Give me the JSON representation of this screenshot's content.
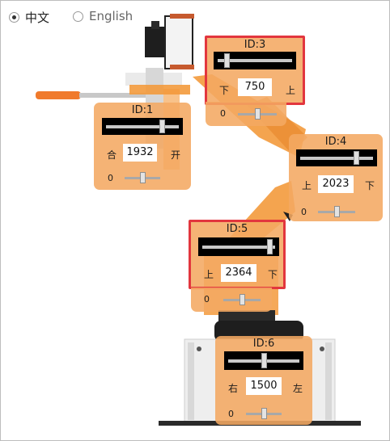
{
  "language": {
    "options": [
      {
        "label": "中文",
        "selected": true
      },
      {
        "label": "English",
        "selected": false
      }
    ]
  },
  "panels": [
    {
      "id_label": "ID:3",
      "value": "750",
      "left_label": "下",
      "right_label": "上",
      "slider_fraction": 0.16,
      "offset_label": "0",
      "offset_fraction": 0.5,
      "highlighted": true
    },
    {
      "id_label": "ID:1",
      "value": "1932",
      "left_label": "合",
      "right_label": "开",
      "slider_fraction": 0.74,
      "offset_label": "0",
      "offset_fraction": 0.5,
      "highlighted": false
    },
    {
      "id_label": "ID:4",
      "value": "2023",
      "left_label": "上",
      "right_label": "下",
      "slider_fraction": 0.74,
      "offset_label": "0",
      "offset_fraction": 0.5,
      "highlighted": false
    },
    {
      "id_label": "ID:5",
      "value": "2364",
      "left_label": "上",
      "right_label": "下",
      "slider_fraction": 0.88,
      "offset_label": "0",
      "offset_fraction": 0.5,
      "highlighted": true
    },
    {
      "id_label": "ID:6",
      "value": "1500",
      "left_label": "右",
      "right_label": "左",
      "slider_fraction": 0.5,
      "offset_label": "0",
      "offset_fraction": 0.5,
      "highlighted": false
    }
  ],
  "colors": {
    "panel": "#f4a862",
    "highlight": "#e2363e",
    "arm": "#f39a3c",
    "servo": "#1e1e1e"
  }
}
